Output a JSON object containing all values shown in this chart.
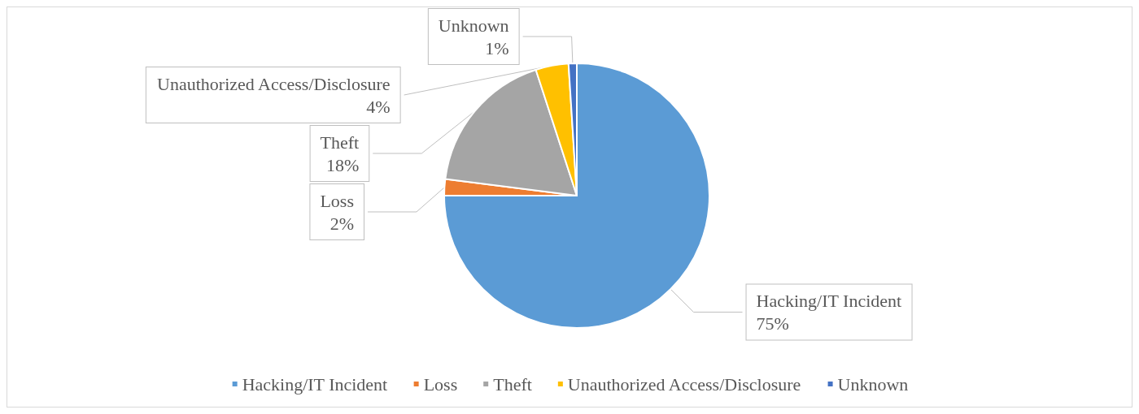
{
  "chart_data": {
    "type": "pie",
    "categories": [
      "Hacking/IT Incident",
      "Loss",
      "Theft",
      "Unauthorized Access/Disclosure",
      "Unknown"
    ],
    "values": [
      75,
      2,
      18,
      4,
      1
    ],
    "colors": [
      "#5b9bd5",
      "#ed7d31",
      "#a5a5a5",
      "#ffc000",
      "#4472c4"
    ],
    "value_labels": [
      "75%",
      "2%",
      "18%",
      "4%",
      "1%"
    ],
    "legend": "bottom"
  }
}
